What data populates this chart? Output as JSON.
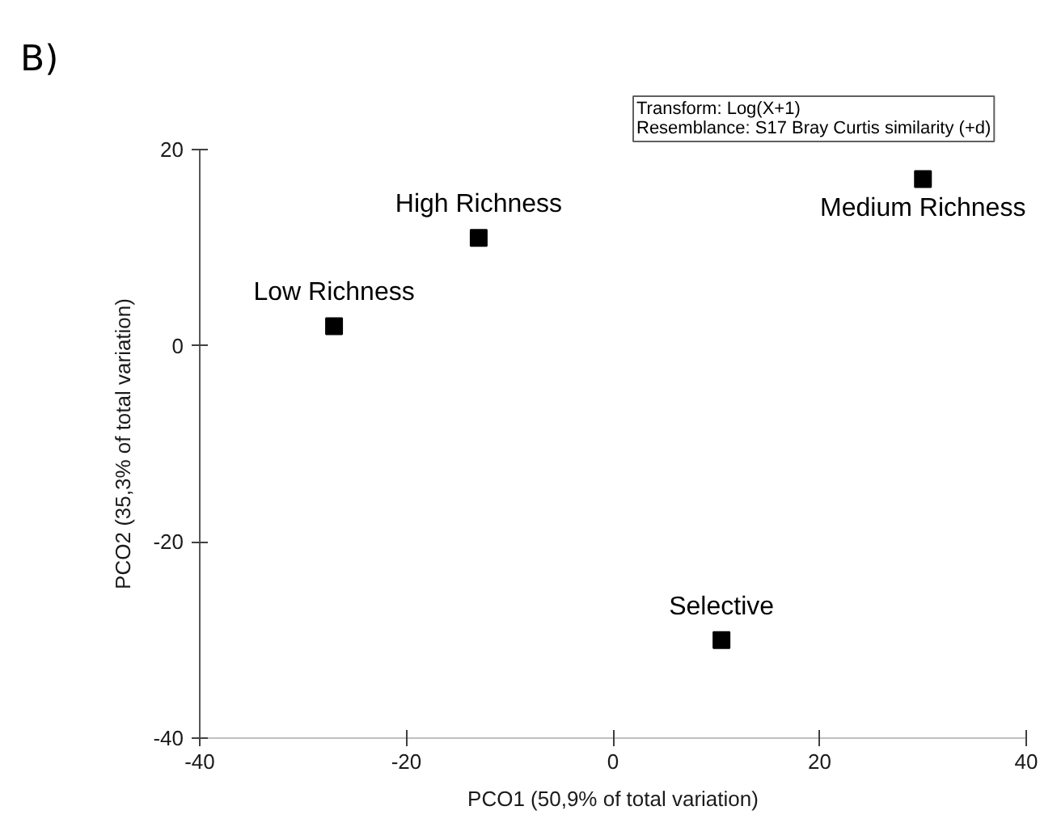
{
  "chart_data": {
    "type": "scatter",
    "title": "B)",
    "xlabel": "PCO1 (50,9% of total variation)",
    "ylabel": "PCO2 (35,3% of total variation)",
    "annotations": [
      "Transform: Log(X+1)",
      "Resemblance: S17 Bray Curtis similarity (+d)"
    ],
    "marker": "square",
    "xlim": [
      -40,
      40
    ],
    "xticks": [
      -40,
      -20,
      0,
      20,
      40
    ],
    "ylim": [
      -40,
      20
    ],
    "yticks": [
      -40,
      -20,
      0,
      20
    ],
    "series": [
      {
        "name": "Low Richness",
        "color": "#000000",
        "x": [
          -27
        ],
        "values": [
          2
        ]
      },
      {
        "name": "High Richness",
        "color": "#000000",
        "x": [
          -13
        ],
        "values": [
          11
        ]
      },
      {
        "name": "Medium Richness",
        "color": "#000000",
        "x": [
          30
        ],
        "values": [
          17
        ]
      },
      {
        "name": "Selective",
        "color": "#000000",
        "x": [
          10.5
        ],
        "values": [
          -30
        ]
      }
    ]
  }
}
